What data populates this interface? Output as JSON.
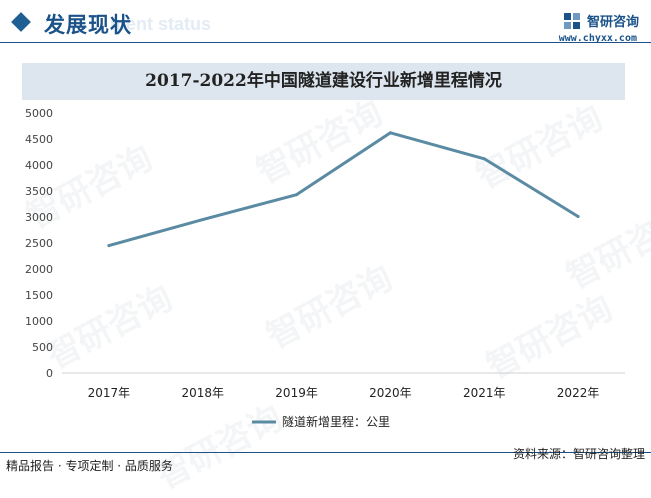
{
  "header": {
    "heading": "发展现状",
    "heading_shadow": "ment status",
    "brand_name": "智研咨询",
    "brand_url": "www.chyxx.com"
  },
  "watermark": "智研咨询",
  "footer": {
    "left": "精品报告 · 专项定制 · 品质服务",
    "right": "资料来源：智研咨询整理"
  },
  "colors": {
    "accent": "#1a5289",
    "line": "#5a8ba3",
    "title_band": "#dde6ef"
  },
  "chart_data": {
    "type": "line",
    "title": "2017-2022年中国隧道建设行业新增里程情况",
    "categories": [
      "2017年",
      "2018年",
      "2019年",
      "2020年",
      "2021年",
      "2022年"
    ],
    "series": [
      {
        "name": "隧道新增里程：公里",
        "values": [
          2450,
          2950,
          3430,
          4620,
          4120,
          3010
        ]
      }
    ],
    "ylim": [
      0,
      5000
    ],
    "yticks": [
      0,
      500,
      1000,
      1500,
      2000,
      2500,
      3000,
      3500,
      4000,
      4500,
      5000
    ],
    "grid": false,
    "legend": "bottom"
  }
}
